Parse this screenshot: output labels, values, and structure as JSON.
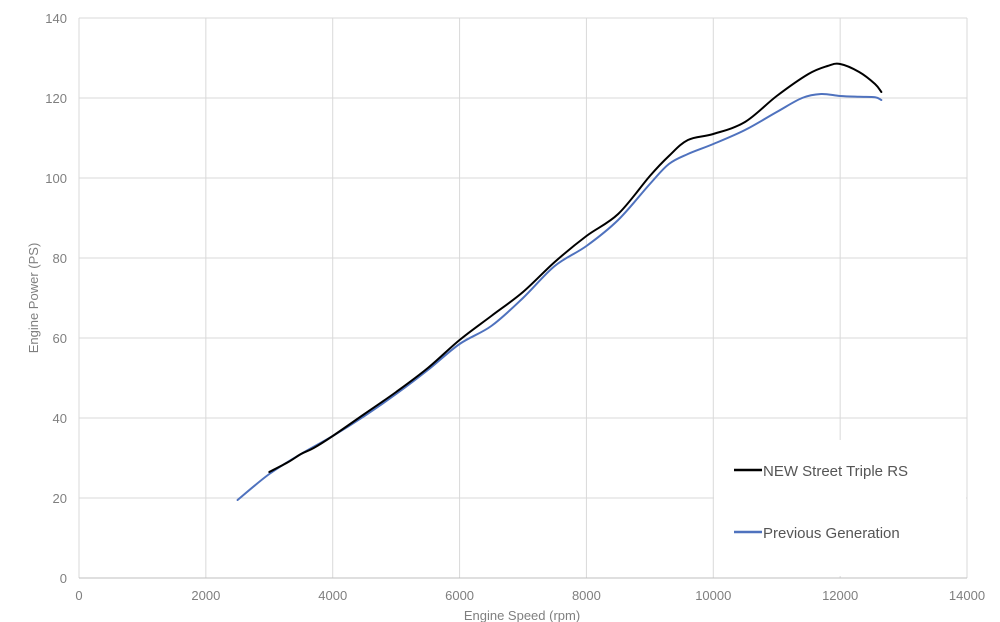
{
  "chart_data": {
    "type": "line",
    "xlabel": "Engine Speed (rpm)",
    "ylabel": "Engine Power (PS)",
    "xlim": [
      0,
      14000
    ],
    "ylim": [
      0,
      140
    ],
    "xticks": [
      0,
      2000,
      4000,
      6000,
      8000,
      10000,
      12000,
      14000
    ],
    "yticks": [
      0,
      20,
      40,
      60,
      80,
      100,
      120,
      140
    ],
    "grid": true,
    "legend_position": "bottom-right",
    "series": [
      {
        "name": "NEW Street Triple RS",
        "color": "#000000",
        "points": [
          [
            3000,
            26.5
          ],
          [
            3300,
            29
          ],
          [
            3500,
            31
          ],
          [
            3700,
            32.5
          ],
          [
            4000,
            35.5
          ],
          [
            4500,
            41
          ],
          [
            5000,
            46.5
          ],
          [
            5500,
            52.5
          ],
          [
            6000,
            59.5
          ],
          [
            6500,
            65.5
          ],
          [
            7000,
            71.5
          ],
          [
            7500,
            79
          ],
          [
            8000,
            85.5
          ],
          [
            8500,
            91
          ],
          [
            9000,
            100.5
          ],
          [
            9300,
            105.5
          ],
          [
            9600,
            109.5
          ],
          [
            10000,
            111
          ],
          [
            10500,
            114
          ],
          [
            11000,
            120.5
          ],
          [
            11500,
            126
          ],
          [
            11800,
            128
          ],
          [
            12000,
            128.5
          ],
          [
            12300,
            126.5
          ],
          [
            12550,
            123.5
          ],
          [
            12650,
            121.5
          ]
        ]
      },
      {
        "name": "Previous Generation",
        "color": "#4f72be",
        "points": [
          [
            2500,
            19.5
          ],
          [
            3000,
            26
          ],
          [
            3500,
            31
          ],
          [
            4000,
            35.5
          ],
          [
            4500,
            40.5
          ],
          [
            5000,
            46
          ],
          [
            5500,
            52
          ],
          [
            6000,
            58.5
          ],
          [
            6500,
            63
          ],
          [
            7000,
            70
          ],
          [
            7500,
            78
          ],
          [
            8000,
            83
          ],
          [
            8500,
            89.5
          ],
          [
            9000,
            98.5
          ],
          [
            9300,
            103.5
          ],
          [
            9600,
            106
          ],
          [
            10000,
            108.5
          ],
          [
            10500,
            112
          ],
          [
            11000,
            116.5
          ],
          [
            11400,
            120
          ],
          [
            11700,
            121
          ],
          [
            12000,
            120.5
          ],
          [
            12300,
            120.3
          ],
          [
            12550,
            120.2
          ],
          [
            12650,
            119.5
          ]
        ]
      }
    ]
  }
}
